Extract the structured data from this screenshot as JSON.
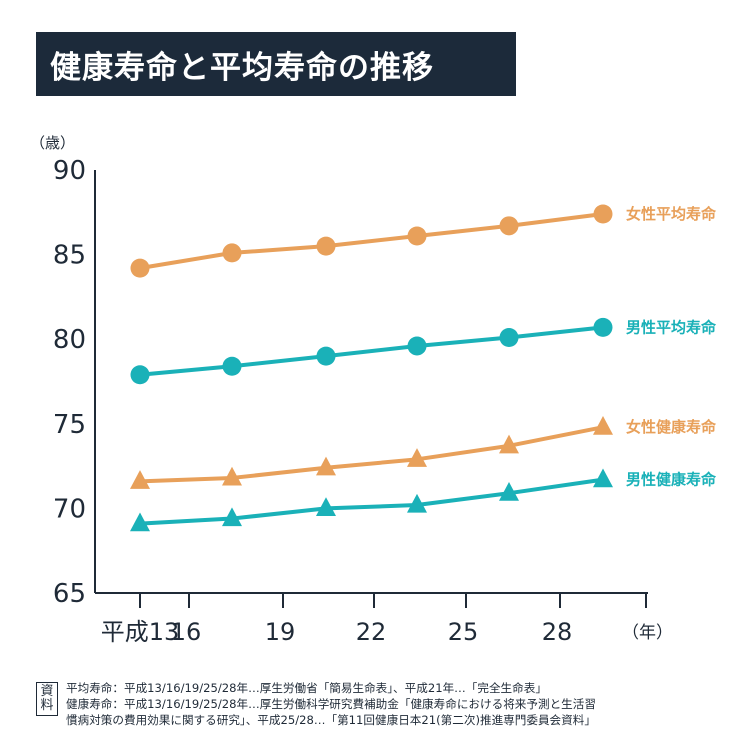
{
  "title": "健康寿命と平均寿命の推移",
  "source": {
    "tag": "資料",
    "lines": [
      "平均寿命：平成13/16/19/25/28年…厚生労働省「簡易生命表」、平成21年…「完全生命表」",
      "健康寿命：平成13/16/19/25/28年…厚生労働科学研究費補助金「健康寿命における将来予測と生活習",
      "慣病対策の費用効果に関する研究」、平成25/28…「第11回健康日本21(第二次)推進専門委員会資料」"
    ]
  },
  "colors": {
    "female": "#e8a05a",
    "male": "#1ab1b8",
    "axis": "#1f2a37"
  },
  "chart_data": {
    "type": "line",
    "ylabel": "（歳）",
    "xlabel": "（年）",
    "ylim": [
      65,
      90
    ],
    "yticks": [
      65,
      70,
      75,
      80,
      85,
      90
    ],
    "categories": [
      "平成13",
      "16",
      "19",
      "22",
      "25",
      "28"
    ],
    "series": [
      {
        "name": "女性平均寿命",
        "color": "#e8a05a",
        "marker": "circle",
        "values": [
          84.2,
          85.1,
          85.5,
          86.1,
          86.7,
          87.4
        ]
      },
      {
        "name": "男性平均寿命",
        "color": "#1ab1b8",
        "marker": "circle",
        "values": [
          77.9,
          78.4,
          79.0,
          79.6,
          80.1,
          80.7
        ]
      },
      {
        "name": "女性健康寿命",
        "color": "#e8a05a",
        "marker": "triangle",
        "values": [
          71.6,
          71.8,
          72.4,
          72.9,
          73.7,
          74.8
        ]
      },
      {
        "name": "男性健康寿命",
        "color": "#1ab1b8",
        "marker": "triangle",
        "values": [
          69.1,
          69.4,
          70.0,
          70.2,
          70.9,
          71.7
        ]
      }
    ]
  }
}
